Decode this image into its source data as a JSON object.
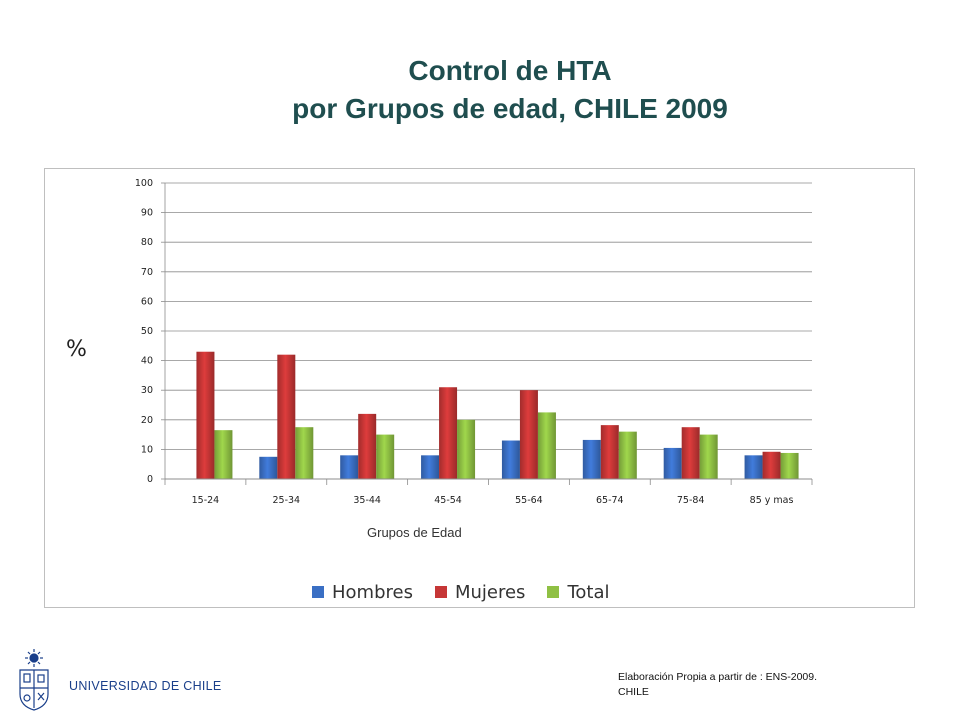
{
  "title": {
    "line1": "Control de HTA",
    "line2": "por Grupos de edad, CHILE 2009"
  },
  "chart_data": {
    "type": "bar",
    "categories": [
      "15-24",
      "25-34",
      "35-44",
      "45-54",
      "55-64",
      "65-74",
      "75-84",
      "85 y mas"
    ],
    "series": [
      {
        "name": "Hombres",
        "color": "#3a6fc4",
        "values": [
          0,
          7.5,
          8,
          8,
          13,
          13.2,
          10.5,
          8
        ]
      },
      {
        "name": "Mujeres",
        "color": "#c63636",
        "values": [
          43,
          42,
          22,
          31,
          30,
          18.2,
          17.5,
          9.2
        ]
      },
      {
        "name": "Total",
        "color": "#8fc044",
        "values": [
          16.5,
          17.5,
          15,
          20,
          22.5,
          16,
          15,
          8.8
        ]
      }
    ],
    "xlabel": "Grupos de Edad",
    "ylabel": "%",
    "ylim": [
      0,
      100
    ],
    "yticks": [
      "0",
      "10",
      "20",
      "30",
      "40",
      "50",
      "60",
      "70",
      "80",
      "90",
      "100"
    ],
    "grid": true,
    "legend_position": "bottom"
  },
  "logo": {
    "text": "UNIVERSIDAD DE CHILE",
    "icon": "university-crest-icon"
  },
  "source": {
    "line1": "Elaboración Propia a partir de : ENS-2009.",
    "line2": "CHILE"
  }
}
